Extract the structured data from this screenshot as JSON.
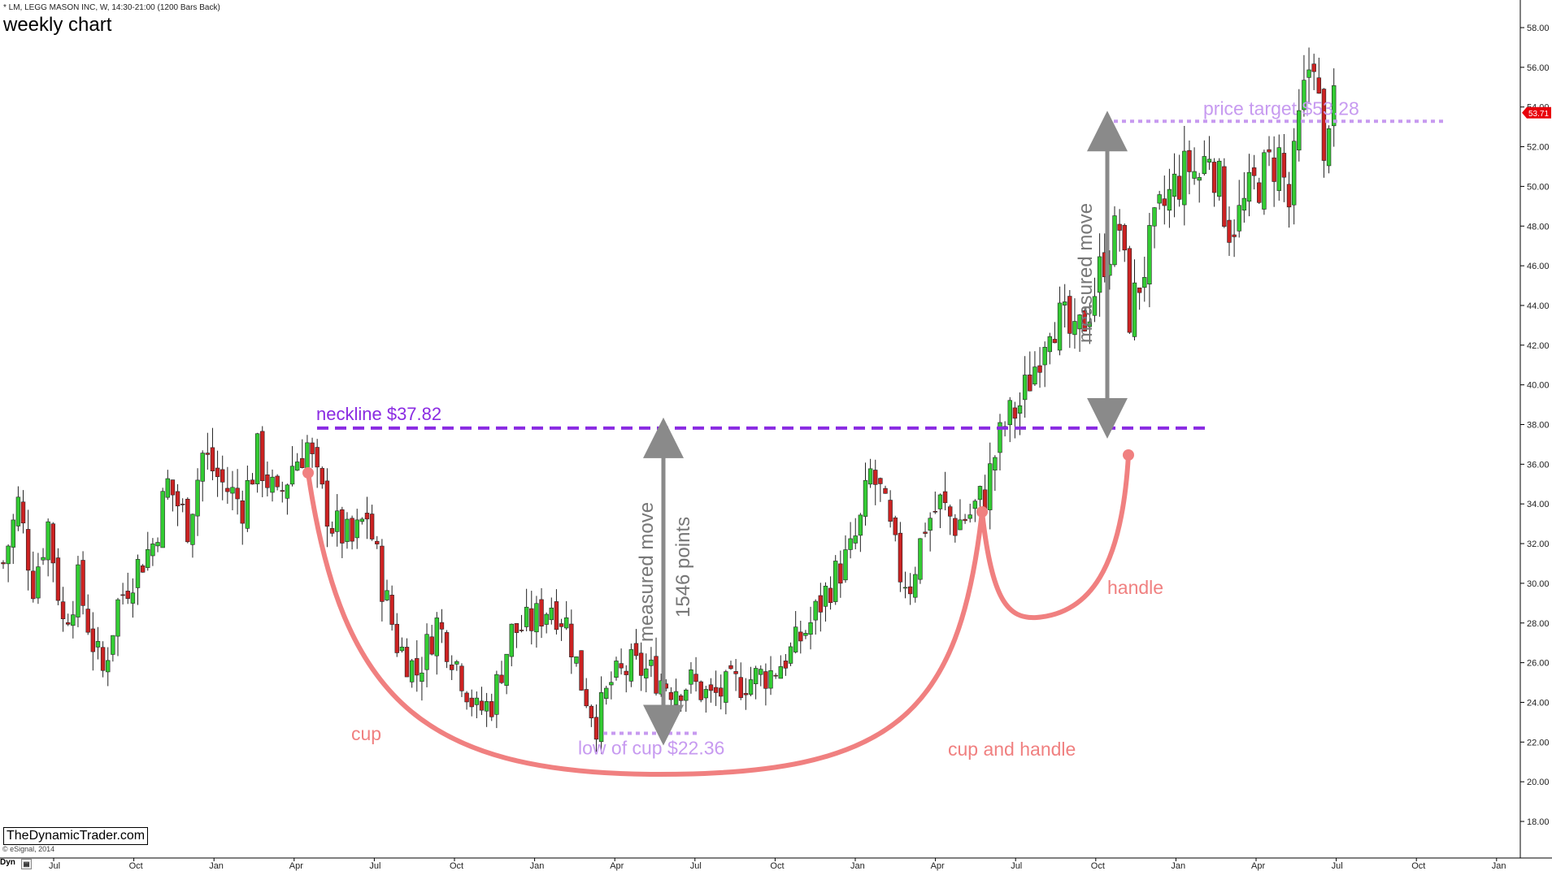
{
  "header": {
    "symbol_line": "* LM, LEGG MASON INC, W, 14:30-21:00 (1200 Bars Back)",
    "chart_title": "weekly chart"
  },
  "footer": {
    "watermark": "TheDynamicTrader.com",
    "copyright": "© eSignal, 2014",
    "dyn_label": "Dyn"
  },
  "colors": {
    "up_candle": "#33cc33",
    "down_candle": "#cc2222",
    "neckline": "#8a2be2",
    "target": "#c79af0",
    "pattern": "#f08080",
    "arrow": "#8a8a8a",
    "price_flag": "#e8000b"
  },
  "annotations": {
    "neckline": "neckline $37.82",
    "price_target": "price target $53.28",
    "low_of_cup": "low of cup $22.36",
    "measured_move_1": "measured move",
    "points": "1546 points",
    "measured_move_2": "measured move",
    "cup": "cup",
    "handle": "handle",
    "cup_and_handle": "cup and handle",
    "last_price": "53.71"
  },
  "chart_data": {
    "type": "candlestick",
    "title": "weekly chart",
    "ylim": [
      17,
      59
    ],
    "y_ticks": [
      "18.00",
      "20.00",
      "22.00",
      "24.00",
      "26.00",
      "28.00",
      "30.00",
      "32.00",
      "34.00",
      "36.00",
      "38.00",
      "40.00",
      "42.00",
      "44.00",
      "46.00",
      "48.00",
      "50.00",
      "52.00",
      "54.00",
      "56.00",
      "58.00"
    ],
    "x_ticks": [
      "Jul",
      "Oct",
      "Jan",
      "Apr",
      "Jul",
      "Oct",
      "Jan",
      "Apr",
      "Jul",
      "Oct",
      "Jan",
      "Apr",
      "Jul",
      "Oct",
      "Jan",
      "Apr",
      "Jul",
      "Oct",
      "Jan"
    ],
    "levels": {
      "neckline": 37.82,
      "price_target": 53.28,
      "low_of_cup": 22.36,
      "last_price": 53.71
    },
    "anchors": [
      [
        0,
        31
      ],
      [
        3,
        34
      ],
      [
        6,
        30
      ],
      [
        9,
        33
      ],
      [
        12,
        28
      ],
      [
        15,
        30
      ],
      [
        18,
        27
      ],
      [
        20,
        25.5
      ],
      [
        23,
        29
      ],
      [
        26,
        30.5
      ],
      [
        30,
        32
      ],
      [
        33,
        35
      ],
      [
        37,
        33
      ],
      [
        40,
        36.5
      ],
      [
        44,
        35
      ],
      [
        48,
        34
      ],
      [
        51,
        36.5
      ],
      [
        55,
        34
      ],
      [
        58,
        36
      ],
      [
        61,
        37
      ],
      [
        63,
        35
      ],
      [
        66,
        33
      ],
      [
        70,
        32
      ],
      [
        73,
        33.5
      ],
      [
        76,
        30
      ],
      [
        79,
        27
      ],
      [
        83,
        25.5
      ],
      [
        87,
        28
      ],
      [
        91,
        26
      ],
      [
        95,
        23.5
      ],
      [
        98,
        24
      ],
      [
        102,
        27.5
      ],
      [
        106,
        28
      ],
      [
        110,
        29
      ],
      [
        113,
        28
      ],
      [
        116,
        25
      ],
      [
        119,
        23
      ],
      [
        122,
        25
      ],
      [
        126,
        25.8
      ],
      [
        130,
        25.5
      ],
      [
        134,
        24.8
      ],
      [
        138,
        25
      ],
      [
        142,
        24.2
      ],
      [
        146,
        24.8
      ],
      [
        150,
        25.2
      ],
      [
        154,
        25.5
      ],
      [
        158,
        26.5
      ],
      [
        162,
        28
      ],
      [
        166,
        30
      ],
      [
        170,
        31.5
      ],
      [
        172,
        33
      ],
      [
        174,
        35.5
      ],
      [
        176,
        34.5
      ],
      [
        178,
        32.5
      ],
      [
        180,
        30.5
      ],
      [
        182,
        30
      ],
      [
        185,
        33
      ],
      [
        188,
        34
      ],
      [
        191,
        33
      ],
      [
        194,
        33.5
      ],
      [
        197,
        34.5
      ],
      [
        199,
        36.5
      ],
      [
        201,
        38
      ],
      [
        204,
        39
      ],
      [
        207,
        41
      ],
      [
        210,
        43.5
      ],
      [
        213,
        43
      ],
      [
        215,
        42
      ],
      [
        218,
        44
      ],
      [
        221,
        46.5
      ],
      [
        224,
        48
      ],
      [
        226,
        43.5
      ],
      [
        229,
        46
      ],
      [
        232,
        48.5
      ],
      [
        235,
        50
      ],
      [
        238,
        51
      ],
      [
        240,
        50.5
      ],
      [
        242,
        52
      ],
      [
        244,
        50
      ],
      [
        246,
        48
      ],
      [
        248,
        48.5
      ],
      [
        251,
        50
      ],
      [
        254,
        51
      ],
      [
        256,
        51.5
      ],
      [
        258,
        49
      ],
      [
        260,
        53
      ],
      [
        262,
        56
      ],
      [
        263,
        57
      ],
      [
        264,
        54
      ],
      [
        265,
        50.5
      ],
      [
        266,
        54
      ],
      [
        267,
        53.71
      ]
    ],
    "bar_count": 268
  },
  "layout_note_none": ""
}
